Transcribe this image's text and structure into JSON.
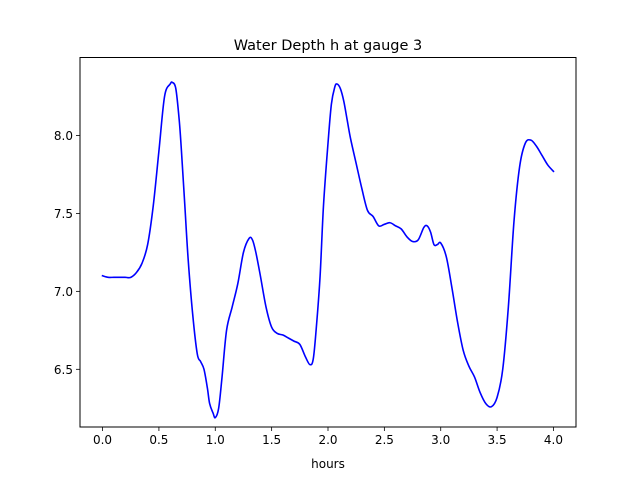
{
  "chart_data": {
    "type": "line",
    "title": "Water Depth h at gauge 3",
    "xlabel": "hours",
    "ylabel": "",
    "xlim": [
      -0.2,
      4.2
    ],
    "ylim": [
      6.13,
      8.5
    ],
    "x_ticks": [
      0.0,
      0.5,
      1.0,
      1.5,
      2.0,
      2.5,
      3.0,
      3.5,
      4.0
    ],
    "x_tick_labels": [
      "0.0",
      "0.5",
      "1.0",
      "1.5",
      "2.0",
      "2.5",
      "3.0",
      "3.5",
      "4.0"
    ],
    "y_ticks": [
      6.5,
      7.0,
      7.5,
      8.0
    ],
    "y_tick_labels": [
      "6.5",
      "7.0",
      "7.5",
      "8.0"
    ],
    "grid": false,
    "legend": "none",
    "series": [
      {
        "color": "#0000ff",
        "x": [
          0.0,
          0.05,
          0.1,
          0.15,
          0.2,
          0.25,
          0.3,
          0.35,
          0.4,
          0.45,
          0.5,
          0.55,
          0.6,
          0.62,
          0.65,
          0.68,
          0.7,
          0.73,
          0.76,
          0.8,
          0.84,
          0.87,
          0.9,
          0.93,
          0.95,
          0.98,
          1.0,
          1.03,
          1.06,
          1.1,
          1.15,
          1.2,
          1.25,
          1.3,
          1.33,
          1.36,
          1.4,
          1.45,
          1.5,
          1.55,
          1.6,
          1.65,
          1.7,
          1.75,
          1.8,
          1.84,
          1.87,
          1.9,
          1.93,
          1.96,
          2.0,
          2.03,
          2.06,
          2.08,
          2.11,
          2.14,
          2.17,
          2.2,
          2.25,
          2.3,
          2.35,
          2.4,
          2.45,
          2.5,
          2.55,
          2.6,
          2.65,
          2.7,
          2.75,
          2.8,
          2.85,
          2.88,
          2.91,
          2.94,
          2.97,
          3.0,
          3.05,
          3.1,
          3.15,
          3.2,
          3.25,
          3.3,
          3.35,
          3.4,
          3.45,
          3.5,
          3.55,
          3.6,
          3.65,
          3.7,
          3.75,
          3.8,
          3.85,
          3.9,
          3.95,
          4.0
        ],
        "y": [
          7.1,
          7.09,
          7.09,
          7.09,
          7.09,
          7.09,
          7.12,
          7.18,
          7.3,
          7.55,
          7.9,
          8.25,
          8.33,
          8.34,
          8.3,
          8.1,
          7.9,
          7.55,
          7.2,
          6.85,
          6.6,
          6.55,
          6.5,
          6.38,
          6.28,
          6.22,
          6.19,
          6.25,
          6.45,
          6.75,
          6.9,
          7.05,
          7.25,
          7.34,
          7.33,
          7.25,
          7.1,
          6.9,
          6.77,
          6.73,
          6.72,
          6.7,
          6.68,
          6.66,
          6.58,
          6.53,
          6.57,
          6.8,
          7.1,
          7.55,
          7.95,
          8.2,
          8.31,
          8.33,
          8.3,
          8.22,
          8.1,
          7.98,
          7.82,
          7.66,
          7.52,
          7.48,
          7.42,
          7.43,
          7.44,
          7.42,
          7.4,
          7.35,
          7.32,
          7.33,
          7.41,
          7.42,
          7.38,
          7.3,
          7.3,
          7.31,
          7.22,
          7.02,
          6.8,
          6.62,
          6.52,
          6.45,
          6.35,
          6.28,
          6.26,
          6.32,
          6.5,
          6.9,
          7.45,
          7.8,
          7.95,
          7.97,
          7.93,
          7.87,
          7.81,
          7.77
        ]
      }
    ]
  }
}
